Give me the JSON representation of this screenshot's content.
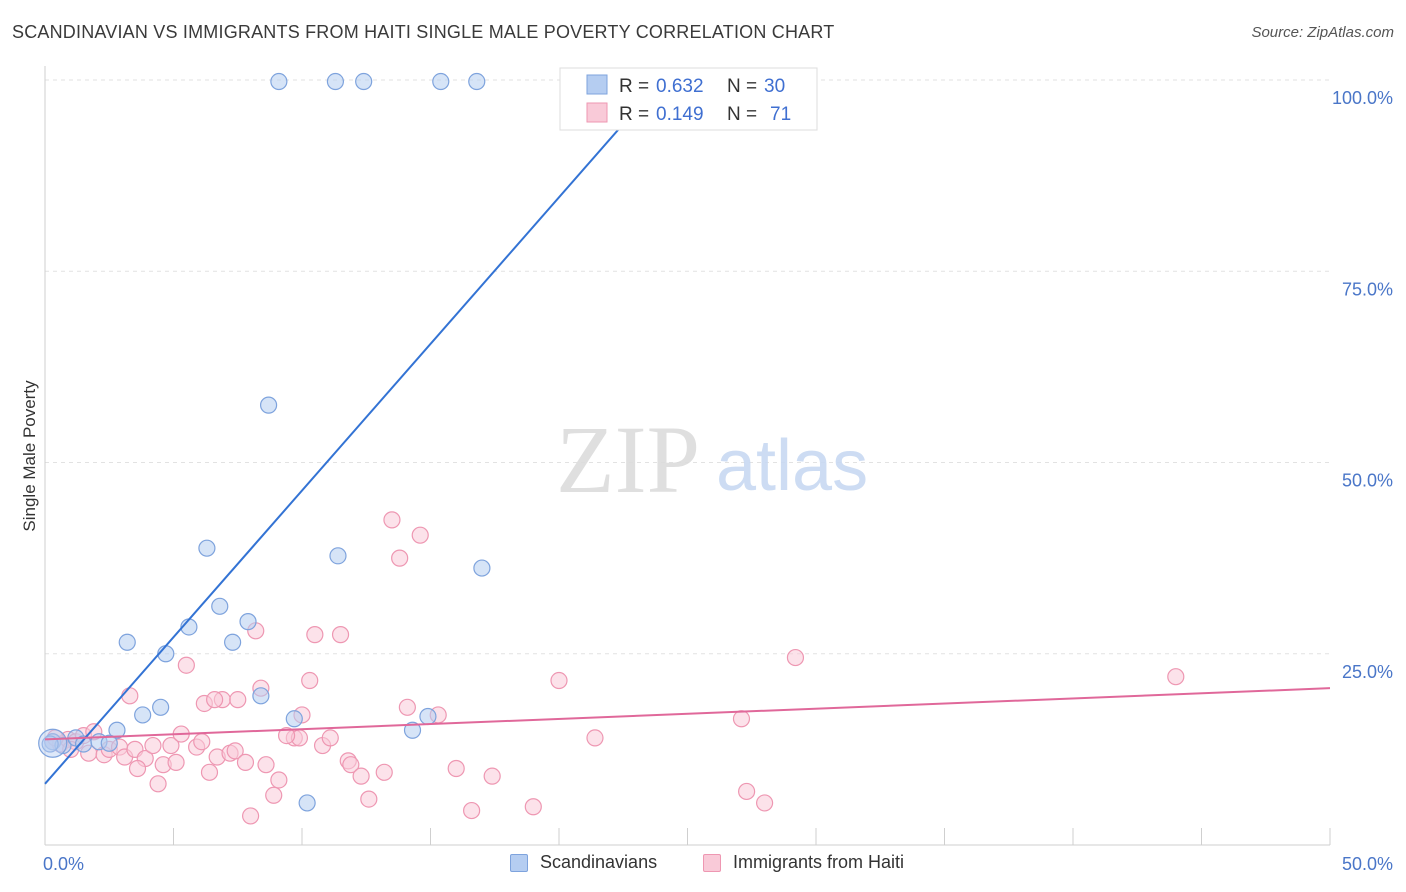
{
  "header": {
    "title": "SCANDINAVIAN VS IMMIGRANTS FROM HAITI SINGLE MALE POVERTY CORRELATION CHART",
    "source": "Source: ZipAtlas.com"
  },
  "watermark": {
    "zip": "ZIP",
    "atlas": "atlas"
  },
  "stats_legend": {
    "rows": [
      {
        "r_label": "R =",
        "r_value": "0.632",
        "n_label": "N =",
        "n_value": "30",
        "color": "#a9c5ee"
      },
      {
        "r_label": "R =",
        "r_value": "0.149",
        "n_label": "N =",
        "n_value": "71",
        "color": "#f6b8cb"
      }
    ]
  },
  "bottom_legend": {
    "items": [
      {
        "label": "Scandinavians",
        "color": "#b5cdf1",
        "border": "#7ea3dd"
      },
      {
        "label": "Immigrants from Haiti",
        "color": "#f9cad8",
        "border": "#ee97b2"
      }
    ]
  },
  "chart_data": {
    "type": "scatter",
    "title": "SCANDINAVIAN VS IMMIGRANTS FROM HAITI SINGLE MALE POVERTY CORRELATION CHART",
    "xlabel": "",
    "ylabel": "Single Male Poverty",
    "xlim": [
      0,
      50
    ],
    "ylim": [
      0,
      100
    ],
    "x_tick_labels": [
      "0.0%",
      "50.0%"
    ],
    "y_tick_labels": [
      "100.0%",
      "75.0%",
      "50.0%",
      "25.0%"
    ],
    "y_ticks": [
      100,
      75,
      50,
      25
    ],
    "grid": true,
    "legend": "top-center",
    "series": [
      {
        "name": "Scandinavians",
        "color": "#7ea3dd",
        "fill": "#b5cdf1",
        "r": 0.632,
        "n": 30,
        "trend": {
          "x": [
            0,
            24
          ],
          "y": [
            8,
            100
          ],
          "color": "#3373d4"
        },
        "points": [
          [
            0.3,
            13.5
          ],
          [
            0.7,
            13
          ],
          [
            1.2,
            14
          ],
          [
            1.5,
            13.2
          ],
          [
            2.1,
            13.5
          ],
          [
            2.8,
            15
          ],
          [
            3.8,
            17
          ],
          [
            3.2,
            26.5
          ],
          [
            4.7,
            25
          ],
          [
            4.5,
            18
          ],
          [
            5.6,
            28.5
          ],
          [
            6.3,
            38.8
          ],
          [
            6.8,
            31.2
          ],
          [
            7.3,
            26.5
          ],
          [
            7.9,
            29.2
          ],
          [
            8.4,
            19.5
          ],
          [
            8.7,
            57.5
          ],
          [
            9.7,
            16.5
          ],
          [
            10.2,
            5.5
          ],
          [
            11.4,
            37.8
          ],
          [
            14.3,
            15
          ],
          [
            14.9,
            16.8
          ],
          [
            17.0,
            36.2
          ],
          [
            9.1,
            99.8
          ],
          [
            11.3,
            99.8
          ],
          [
            12.4,
            99.8
          ],
          [
            15.4,
            99.8
          ],
          [
            16.8,
            99.8
          ],
          [
            0.2,
            13.2
          ],
          [
            2.5,
            13.3
          ]
        ]
      },
      {
        "name": "Immigrants from Haiti",
        "color": "#ee97b2",
        "fill": "#f9cad8",
        "r": 0.149,
        "n": 71,
        "trend": {
          "x": [
            0,
            50
          ],
          "y": [
            13.8,
            20.5
          ],
          "color": "#e0689a"
        },
        "points": [
          [
            0.3,
            13.5
          ],
          [
            0.6,
            13.2
          ],
          [
            0.9,
            13.8
          ],
          [
            1.2,
            13.5
          ],
          [
            1.5,
            14.3
          ],
          [
            1.7,
            12.0
          ],
          [
            1.9,
            14.8
          ],
          [
            2.3,
            11.8
          ],
          [
            2.5,
            12.5
          ],
          [
            2.9,
            12.8
          ],
          [
            3.1,
            11.5
          ],
          [
            3.3,
            19.5
          ],
          [
            3.5,
            12.5
          ],
          [
            3.9,
            11.3
          ],
          [
            3.6,
            10.0
          ],
          [
            4.2,
            13.0
          ],
          [
            4.4,
            8.0
          ],
          [
            4.6,
            10.5
          ],
          [
            4.9,
            13.0
          ],
          [
            5.1,
            10.8
          ],
          [
            5.3,
            14.5
          ],
          [
            5.5,
            23.5
          ],
          [
            5.9,
            12.8
          ],
          [
            6.2,
            18.5
          ],
          [
            6.4,
            9.5
          ],
          [
            6.1,
            13.5
          ],
          [
            6.7,
            11.5
          ],
          [
            6.9,
            19.0
          ],
          [
            7.2,
            12.0
          ],
          [
            7.4,
            12.3
          ],
          [
            7.5,
            19.0
          ],
          [
            7.8,
            10.8
          ],
          [
            8.0,
            3.8
          ],
          [
            8.2,
            28.0
          ],
          [
            8.4,
            20.5
          ],
          [
            8.6,
            10.5
          ],
          [
            8.9,
            6.5
          ],
          [
            9.1,
            8.5
          ],
          [
            9.7,
            14.0
          ],
          [
            9.9,
            14.0
          ],
          [
            10.0,
            17.0
          ],
          [
            10.3,
            21.5
          ],
          [
            10.5,
            27.5
          ],
          [
            10.8,
            13.0
          ],
          [
            11.1,
            14.0
          ],
          [
            11.5,
            27.5
          ],
          [
            11.8,
            11.0
          ],
          [
            11.9,
            10.5
          ],
          [
            12.3,
            9.0
          ],
          [
            12.6,
            6.0
          ],
          [
            13.2,
            9.5
          ],
          [
            13.5,
            42.5
          ],
          [
            13.8,
            37.5
          ],
          [
            14.1,
            18.0
          ],
          [
            14.6,
            40.5
          ],
          [
            15.3,
            17.0
          ],
          [
            16.0,
            10.0
          ],
          [
            16.6,
            4.5
          ],
          [
            17.4,
            9.0
          ],
          [
            19.0,
            5.0
          ],
          [
            20.0,
            21.5
          ],
          [
            21.4,
            14.0
          ],
          [
            27.1,
            16.5
          ],
          [
            27.3,
            7.0
          ],
          [
            28.0,
            5.5
          ],
          [
            29.2,
            24.5
          ],
          [
            44.0,
            22.0
          ],
          [
            0.4,
            14.0
          ],
          [
            1.0,
            12.5
          ],
          [
            6.6,
            19.0
          ],
          [
            9.4,
            14.3
          ]
        ]
      }
    ]
  }
}
